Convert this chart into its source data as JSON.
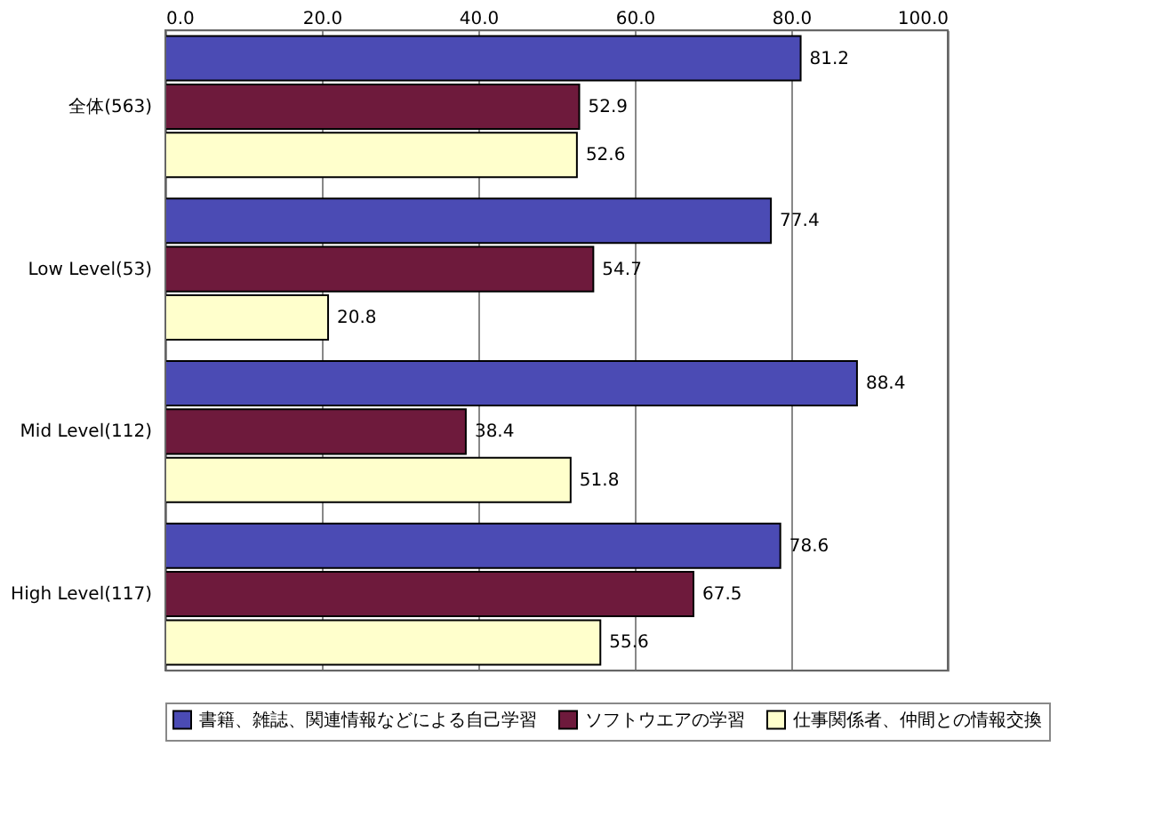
{
  "chart_data": {
    "type": "bar",
    "orientation": "horizontal",
    "categories": [
      "全体(563)",
      "Low Level(53)",
      "Mid Level(112)",
      "High Level(117)"
    ],
    "series": [
      {
        "name": "書籍、雑誌、関連情報などによる自己学習",
        "color": "#4b4bb4",
        "values": [
          81.2,
          77.4,
          88.4,
          78.6
        ]
      },
      {
        "name": "ソフトウエアの学習",
        "color": "#6e1a3c",
        "values": [
          52.9,
          54.7,
          38.4,
          67.5
        ]
      },
      {
        "name": "仕事関係者、仲間との情報交換",
        "color": "#ffffcc",
        "values": [
          52.6,
          20.8,
          51.8,
          55.6
        ]
      }
    ],
    "xlim": [
      0,
      100
    ],
    "xticks": [
      {
        "value": 0,
        "label": "0.0"
      },
      {
        "value": 20,
        "label": "20.0"
      },
      {
        "value": 40,
        "label": "40.0"
      },
      {
        "value": 60,
        "label": "60.0"
      },
      {
        "value": 80,
        "label": "80.0"
      },
      {
        "value": 100,
        "label": "100.0"
      }
    ],
    "grid": "x",
    "legend": "bottom",
    "data_labels": true
  }
}
